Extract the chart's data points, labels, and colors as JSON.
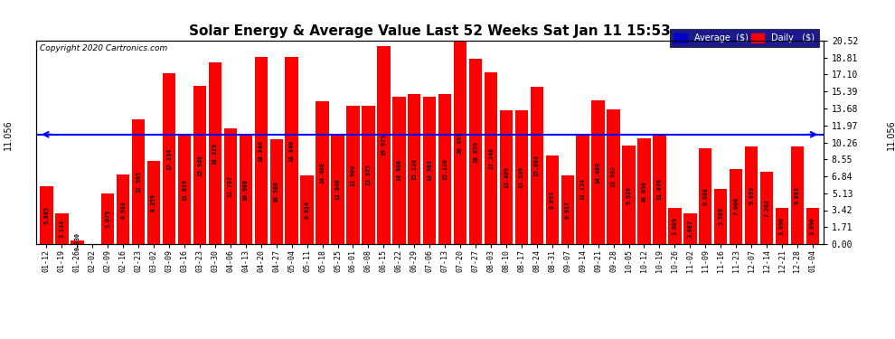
{
  "title": "Solar Energy & Average Value Last 52 Weeks Sat Jan 11 15:53",
  "copyright": "Copyright 2020 Cartronics.com",
  "average_value": 11.056,
  "average_label": "11.056",
  "bar_color": "#ff0000",
  "average_line_color": "#0000ff",
  "background_color": "#ffffff",
  "grid_color": "#bbbbbb",
  "legend_avg_color": "#0000cd",
  "legend_daily_color": "#ff0000",
  "categories": [
    "01-12",
    "01-19",
    "01-26",
    "02-02",
    "02-09",
    "02-16",
    "02-23",
    "03-02",
    "03-09",
    "03-16",
    "03-23",
    "03-30",
    "04-06",
    "04-13",
    "04-20",
    "04-27",
    "05-04",
    "05-11",
    "05-18",
    "05-25",
    "06-01",
    "06-08",
    "06-15",
    "06-22",
    "06-29",
    "07-06",
    "07-13",
    "07-20",
    "07-27",
    "08-03",
    "08-10",
    "08-17",
    "08-24",
    "08-31",
    "09-07",
    "09-14",
    "09-21",
    "09-28",
    "10-05",
    "10-12",
    "10-19",
    "10-26",
    "11-02",
    "11-09",
    "11-16",
    "11-23",
    "12-07",
    "12-14",
    "12-21",
    "12-28",
    "01-04"
  ],
  "values": [
    5.805,
    3.134,
    0.33,
    0.0,
    5.075,
    6.988,
    12.565,
    8.359,
    17.234,
    11.019,
    15.948,
    18.329,
    11.707,
    10.98,
    18.84,
    10.58,
    18.84,
    6.914,
    14.408,
    11.04,
    13.909,
    13.975,
    19.975,
    14.9,
    15.12,
    14.903,
    15.12,
    20.497,
    18.659,
    17.348,
    13.489,
    13.539,
    15.884,
    8.893,
    6.917,
    11.134,
    14.469,
    13.592,
    9.928,
    10.658,
    11.076,
    3.689,
    3.087,
    9.688,
    5.589,
    7.606,
    9.893,
    7.262,
    3.69,
    9.883,
    3.69
  ],
  "ylim": [
    0,
    20.52
  ],
  "yticks_right": [
    0.0,
    1.71,
    3.42,
    5.13,
    6.84,
    8.55,
    10.26,
    11.97,
    13.68,
    15.39,
    17.1,
    18.81,
    20.52
  ],
  "ytick_labels_right": [
    "0.00",
    "1.71",
    "3.42",
    "5.13",
    "6.84",
    "8.55",
    "10.26",
    "11.97",
    "13.68",
    "15.39",
    "17.10",
    "18.81",
    "20.52"
  ]
}
